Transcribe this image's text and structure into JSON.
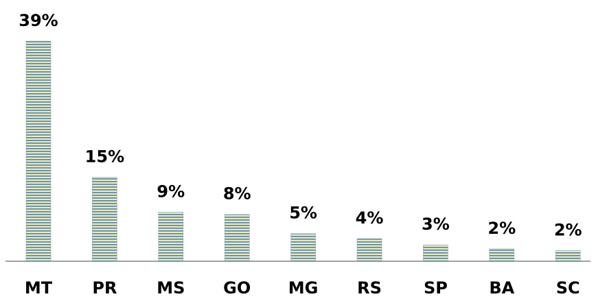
{
  "chart_data": {
    "type": "bar",
    "categories": [
      "MT",
      "PR",
      "MS",
      "GO",
      "MG",
      "RS",
      "SP",
      "BA",
      "SC"
    ],
    "values": [
      39,
      14.9,
      8.7,
      8.3,
      4.9,
      4,
      2.9,
      2.2,
      1.9
    ],
    "value_labels": [
      "39%",
      "15%",
      "9%",
      "8%",
      "5%",
      "4%",
      "3%",
      "2%",
      "2%"
    ]
  }
}
